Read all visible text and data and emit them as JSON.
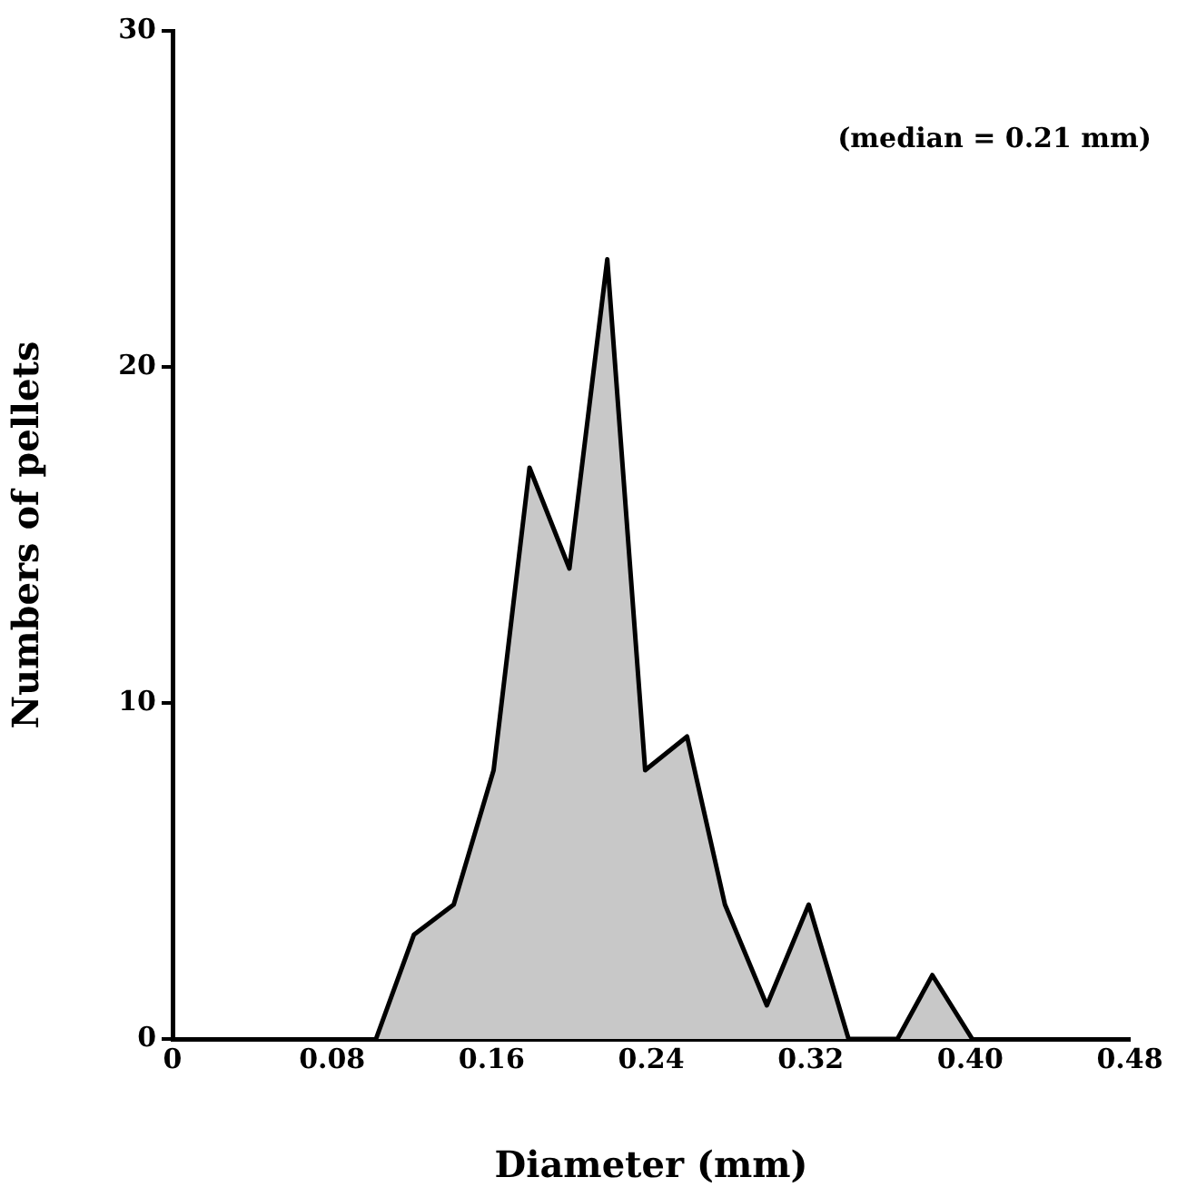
{
  "chart_data": {
    "type": "area",
    "xlabel": "Diameter (mm)",
    "ylabel": "Numbers of pellets",
    "annotations": [
      "(median = 0.21 mm)"
    ],
    "x": [
      0.102,
      0.121,
      0.141,
      0.161,
      0.179,
      0.199,
      0.218,
      0.237,
      0.258,
      0.277,
      0.298,
      0.319,
      0.339,
      0.3635,
      0.381,
      0.401
    ],
    "series": [
      {
        "color": "#c8c8c8",
        "values": [
          0,
          3.1,
          4,
          8,
          17,
          14,
          23.2,
          8,
          9,
          4,
          1,
          4,
          0,
          0,
          1.9,
          0
        ]
      }
    ],
    "xlim": [
      0,
      0.48
    ],
    "xticks": [
      0,
      0.08,
      0.16,
      0.24,
      0.32,
      {
        "value": 0.4,
        "label": "0.40"
      },
      0.48
    ],
    "ylim": [
      0,
      30
    ],
    "yticks": [
      0,
      10,
      20,
      30
    ],
    "grid": false,
    "legend": false
  }
}
